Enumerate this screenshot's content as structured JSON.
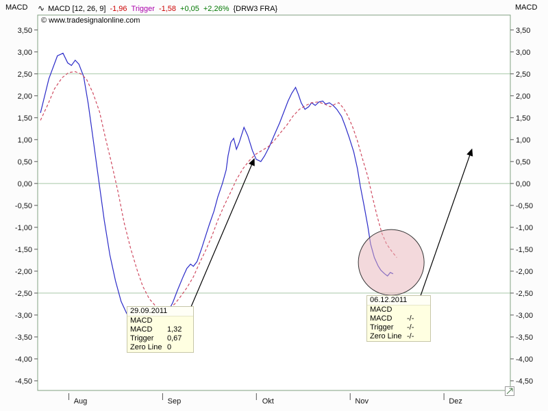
{
  "header": {
    "left_axis_title": "MACD",
    "right_axis_title": "MACD",
    "legend_icon": "∿",
    "legend_segments": [
      {
        "text": "MACD [12, 26, 9]",
        "color": "#000000"
      },
      {
        "text": "-1,96",
        "color": "#cc0000"
      },
      {
        "text": "Trigger",
        "color": "#aa00aa"
      },
      {
        "text": "-1,58",
        "color": "#cc0000"
      },
      {
        "text": "+0,05",
        "color": "#007700"
      },
      {
        "text": "+2,26%",
        "color": "#007700"
      },
      {
        "text": "{DRW3 FRA}",
        "color": "#000000"
      }
    ]
  },
  "copyright": "© www.tradesignalonline.com",
  "chart_data": {
    "type": "line",
    "title": "MACD [12, 26, 9]",
    "xlabel": "",
    "ylabel": "MACD",
    "xlim": [
      -0.42,
      4.62
    ],
    "ylim": [
      -4.72,
      3.84
    ],
    "x_unit": "months: 0=Aug 2011, 1=Sep, 2=Okt, 3=Nov, 4=Dez",
    "grid_on": true,
    "grid_color": "#a8c8a8",
    "border_color": "#7f9f7f",
    "gridlines": [
      2.5,
      0.0,
      -2.5
    ],
    "x_ticks": [
      {
        "pos": 0,
        "label": "Aug"
      },
      {
        "pos": 1,
        "label": "Sep"
      },
      {
        "pos": 2,
        "label": "Okt"
      },
      {
        "pos": 3,
        "label": "Nov"
      },
      {
        "pos": 4,
        "label": "Dez"
      }
    ],
    "y_ticks": [
      {
        "v": 3.5,
        "label": "3,50"
      },
      {
        "v": 3.0,
        "label": "3,00"
      },
      {
        "v": 2.5,
        "label": "2,50"
      },
      {
        "v": 2.0,
        "label": "2,00"
      },
      {
        "v": 1.5,
        "label": "1,50"
      },
      {
        "v": 1.0,
        "label": "1,00"
      },
      {
        "v": 0.5,
        "label": "0,50"
      },
      {
        "v": 0.0,
        "label": "0,00"
      },
      {
        "v": -0.5,
        "label": "-0,50"
      },
      {
        "v": -1.0,
        "label": "-1,00"
      },
      {
        "v": -1.5,
        "label": "-1,50"
      },
      {
        "v": -2.0,
        "label": "-2,00"
      },
      {
        "v": -2.5,
        "label": "-2,50"
      },
      {
        "v": -3.0,
        "label": "-3,00"
      },
      {
        "v": -3.5,
        "label": "-3,50"
      },
      {
        "v": -4.0,
        "label": "-4,00"
      },
      {
        "v": -4.5,
        "label": "-4,50"
      }
    ],
    "series": [
      {
        "name": "MACD",
        "color": "#2a2ac8",
        "dash": "",
        "points": [
          [
            -0.39,
            1.61
          ],
          [
            -0.3,
            2.39
          ],
          [
            -0.21,
            2.91
          ],
          [
            -0.15,
            2.97
          ],
          [
            -0.1,
            2.75
          ],
          [
            -0.06,
            2.69
          ],
          [
            -0.02,
            2.81
          ],
          [
            0.02,
            2.72
          ],
          [
            0.07,
            2.44
          ],
          [
            0.12,
            1.81
          ],
          [
            0.17,
            1.03
          ],
          [
            0.23,
            0.09
          ],
          [
            0.29,
            -0.84
          ],
          [
            0.35,
            -1.63
          ],
          [
            0.41,
            -2.22
          ],
          [
            0.47,
            -2.69
          ],
          [
            0.53,
            -2.97
          ],
          [
            0.59,
            -3.16
          ],
          [
            0.64,
            -3.28
          ],
          [
            0.7,
            -3.34
          ],
          [
            0.76,
            -3.31
          ],
          [
            0.82,
            -3.28
          ],
          [
            0.88,
            -3.14
          ],
          [
            0.93,
            -3.02
          ],
          [
            0.98,
            -2.88
          ],
          [
            1.02,
            -2.72
          ],
          [
            1.07,
            -2.44
          ],
          [
            1.13,
            -2.13
          ],
          [
            1.17,
            -1.94
          ],
          [
            1.21,
            -1.84
          ],
          [
            1.24,
            -1.89
          ],
          [
            1.28,
            -1.78
          ],
          [
            1.33,
            -1.47
          ],
          [
            1.37,
            -1.2
          ],
          [
            1.41,
            -0.94
          ],
          [
            1.46,
            -0.63
          ],
          [
            1.5,
            -0.31
          ],
          [
            1.55,
            0.0
          ],
          [
            1.59,
            0.31
          ],
          [
            1.61,
            0.63
          ],
          [
            1.64,
            0.94
          ],
          [
            1.67,
            1.03
          ],
          [
            1.7,
            0.78
          ],
          [
            1.73,
            0.94
          ],
          [
            1.78,
            1.28
          ],
          [
            1.82,
            1.09
          ],
          [
            1.87,
            0.75
          ],
          [
            1.91,
            0.55
          ],
          [
            1.96,
            0.5
          ],
          [
            2.0,
            0.63
          ],
          [
            2.05,
            0.84
          ],
          [
            2.1,
            1.09
          ],
          [
            2.16,
            1.38
          ],
          [
            2.21,
            1.66
          ],
          [
            2.25,
            1.88
          ],
          [
            2.29,
            2.06
          ],
          [
            2.33,
            2.19
          ],
          [
            2.36,
            2.03
          ],
          [
            2.39,
            1.84
          ],
          [
            2.43,
            1.69
          ],
          [
            2.47,
            1.75
          ],
          [
            2.5,
            1.84
          ],
          [
            2.54,
            1.78
          ],
          [
            2.58,
            1.86
          ],
          [
            2.62,
            1.88
          ],
          [
            2.65,
            1.81
          ],
          [
            2.69,
            1.84
          ],
          [
            2.73,
            1.78
          ],
          [
            2.77,
            1.69
          ],
          [
            2.82,
            1.53
          ],
          [
            2.86,
            1.31
          ],
          [
            2.9,
            1.06
          ],
          [
            2.95,
            0.72
          ],
          [
            2.99,
            0.34
          ],
          [
            3.02,
            -0.06
          ],
          [
            3.06,
            -0.5
          ],
          [
            3.1,
            -0.97
          ],
          [
            3.13,
            -1.38
          ],
          [
            3.17,
            -1.69
          ],
          [
            3.21,
            -1.88
          ],
          [
            3.24,
            -1.98
          ],
          [
            3.28,
            -2.06
          ],
          [
            3.31,
            -2.11
          ],
          [
            3.34,
            -2.03
          ],
          [
            3.37,
            -2.06
          ]
        ]
      },
      {
        "name": "Trigger",
        "color": "#cf4a60",
        "dash": "4,3",
        "points": [
          [
            -0.39,
            1.44
          ],
          [
            -0.31,
            1.81
          ],
          [
            -0.24,
            2.16
          ],
          [
            -0.16,
            2.41
          ],
          [
            -0.09,
            2.53
          ],
          [
            -0.02,
            2.55
          ],
          [
            0.04,
            2.5
          ],
          [
            0.1,
            2.38
          ],
          [
            0.17,
            2.06
          ],
          [
            0.24,
            1.63
          ],
          [
            0.3,
            1.06
          ],
          [
            0.37,
            0.44
          ],
          [
            0.44,
            -0.22
          ],
          [
            0.5,
            -0.88
          ],
          [
            0.57,
            -1.47
          ],
          [
            0.64,
            -1.97
          ],
          [
            0.7,
            -2.34
          ],
          [
            0.77,
            -2.63
          ],
          [
            0.84,
            -2.8
          ],
          [
            0.9,
            -2.88
          ],
          [
            0.97,
            -2.86
          ],
          [
            1.04,
            -2.75
          ],
          [
            1.1,
            -2.59
          ],
          [
            1.17,
            -2.38
          ],
          [
            1.24,
            -2.13
          ],
          [
            1.3,
            -1.84
          ],
          [
            1.37,
            -1.53
          ],
          [
            1.44,
            -1.19
          ],
          [
            1.5,
            -0.84
          ],
          [
            1.57,
            -0.5
          ],
          [
            1.64,
            -0.19
          ],
          [
            1.7,
            0.09
          ],
          [
            1.77,
            0.34
          ],
          [
            1.84,
            0.53
          ],
          [
            1.9,
            0.66
          ],
          [
            1.97,
            0.75
          ],
          [
            2.04,
            0.84
          ],
          [
            2.1,
            0.97
          ],
          [
            2.17,
            1.16
          ],
          [
            2.24,
            1.34
          ],
          [
            2.3,
            1.53
          ],
          [
            2.37,
            1.69
          ],
          [
            2.44,
            1.78
          ],
          [
            2.5,
            1.84
          ],
          [
            2.57,
            1.86
          ],
          [
            2.64,
            1.81
          ],
          [
            2.7,
            1.75
          ],
          [
            2.75,
            1.81
          ],
          [
            2.79,
            1.84
          ],
          [
            2.84,
            1.72
          ],
          [
            2.89,
            1.53
          ],
          [
            2.94,
            1.28
          ],
          [
            2.99,
            0.97
          ],
          [
            3.04,
            0.59
          ],
          [
            3.1,
            0.16
          ],
          [
            3.15,
            -0.31
          ],
          [
            3.2,
            -0.75
          ],
          [
            3.25,
            -1.13
          ],
          [
            3.3,
            -1.38
          ],
          [
            3.36,
            -1.56
          ],
          [
            3.41,
            -1.69
          ]
        ]
      }
    ],
    "annotations": {
      "arrows": [
        {
          "from": [
            1.2,
            -2.89
          ],
          "to": [
            1.889,
            0.56
          ]
        },
        {
          "from": [
            3.65,
            -2.64
          ],
          "to": [
            4.21,
            0.78
          ]
        }
      ],
      "circle": {
        "center": [
          3.35,
          -1.8
        ],
        "radius_px": 48,
        "fill": "#e8b4ba",
        "opacity": 0.5,
        "stroke": "#333333"
      }
    }
  },
  "tooltips": [
    {
      "date": "29.09.2011",
      "title": "MACD",
      "rows": [
        {
          "label": "MACD",
          "value": "1,32"
        },
        {
          "label": "Trigger",
          "value": "0,67"
        },
        {
          "label": "Zero Line",
          "value": "0"
        }
      ]
    },
    {
      "date": "06.12.2011",
      "title": "MACD",
      "rows": [
        {
          "label": "MACD",
          "value": "-/-"
        },
        {
          "label": "Trigger",
          "value": "-/-"
        },
        {
          "label": "Zero Line",
          "value": "-/-"
        }
      ]
    }
  ]
}
